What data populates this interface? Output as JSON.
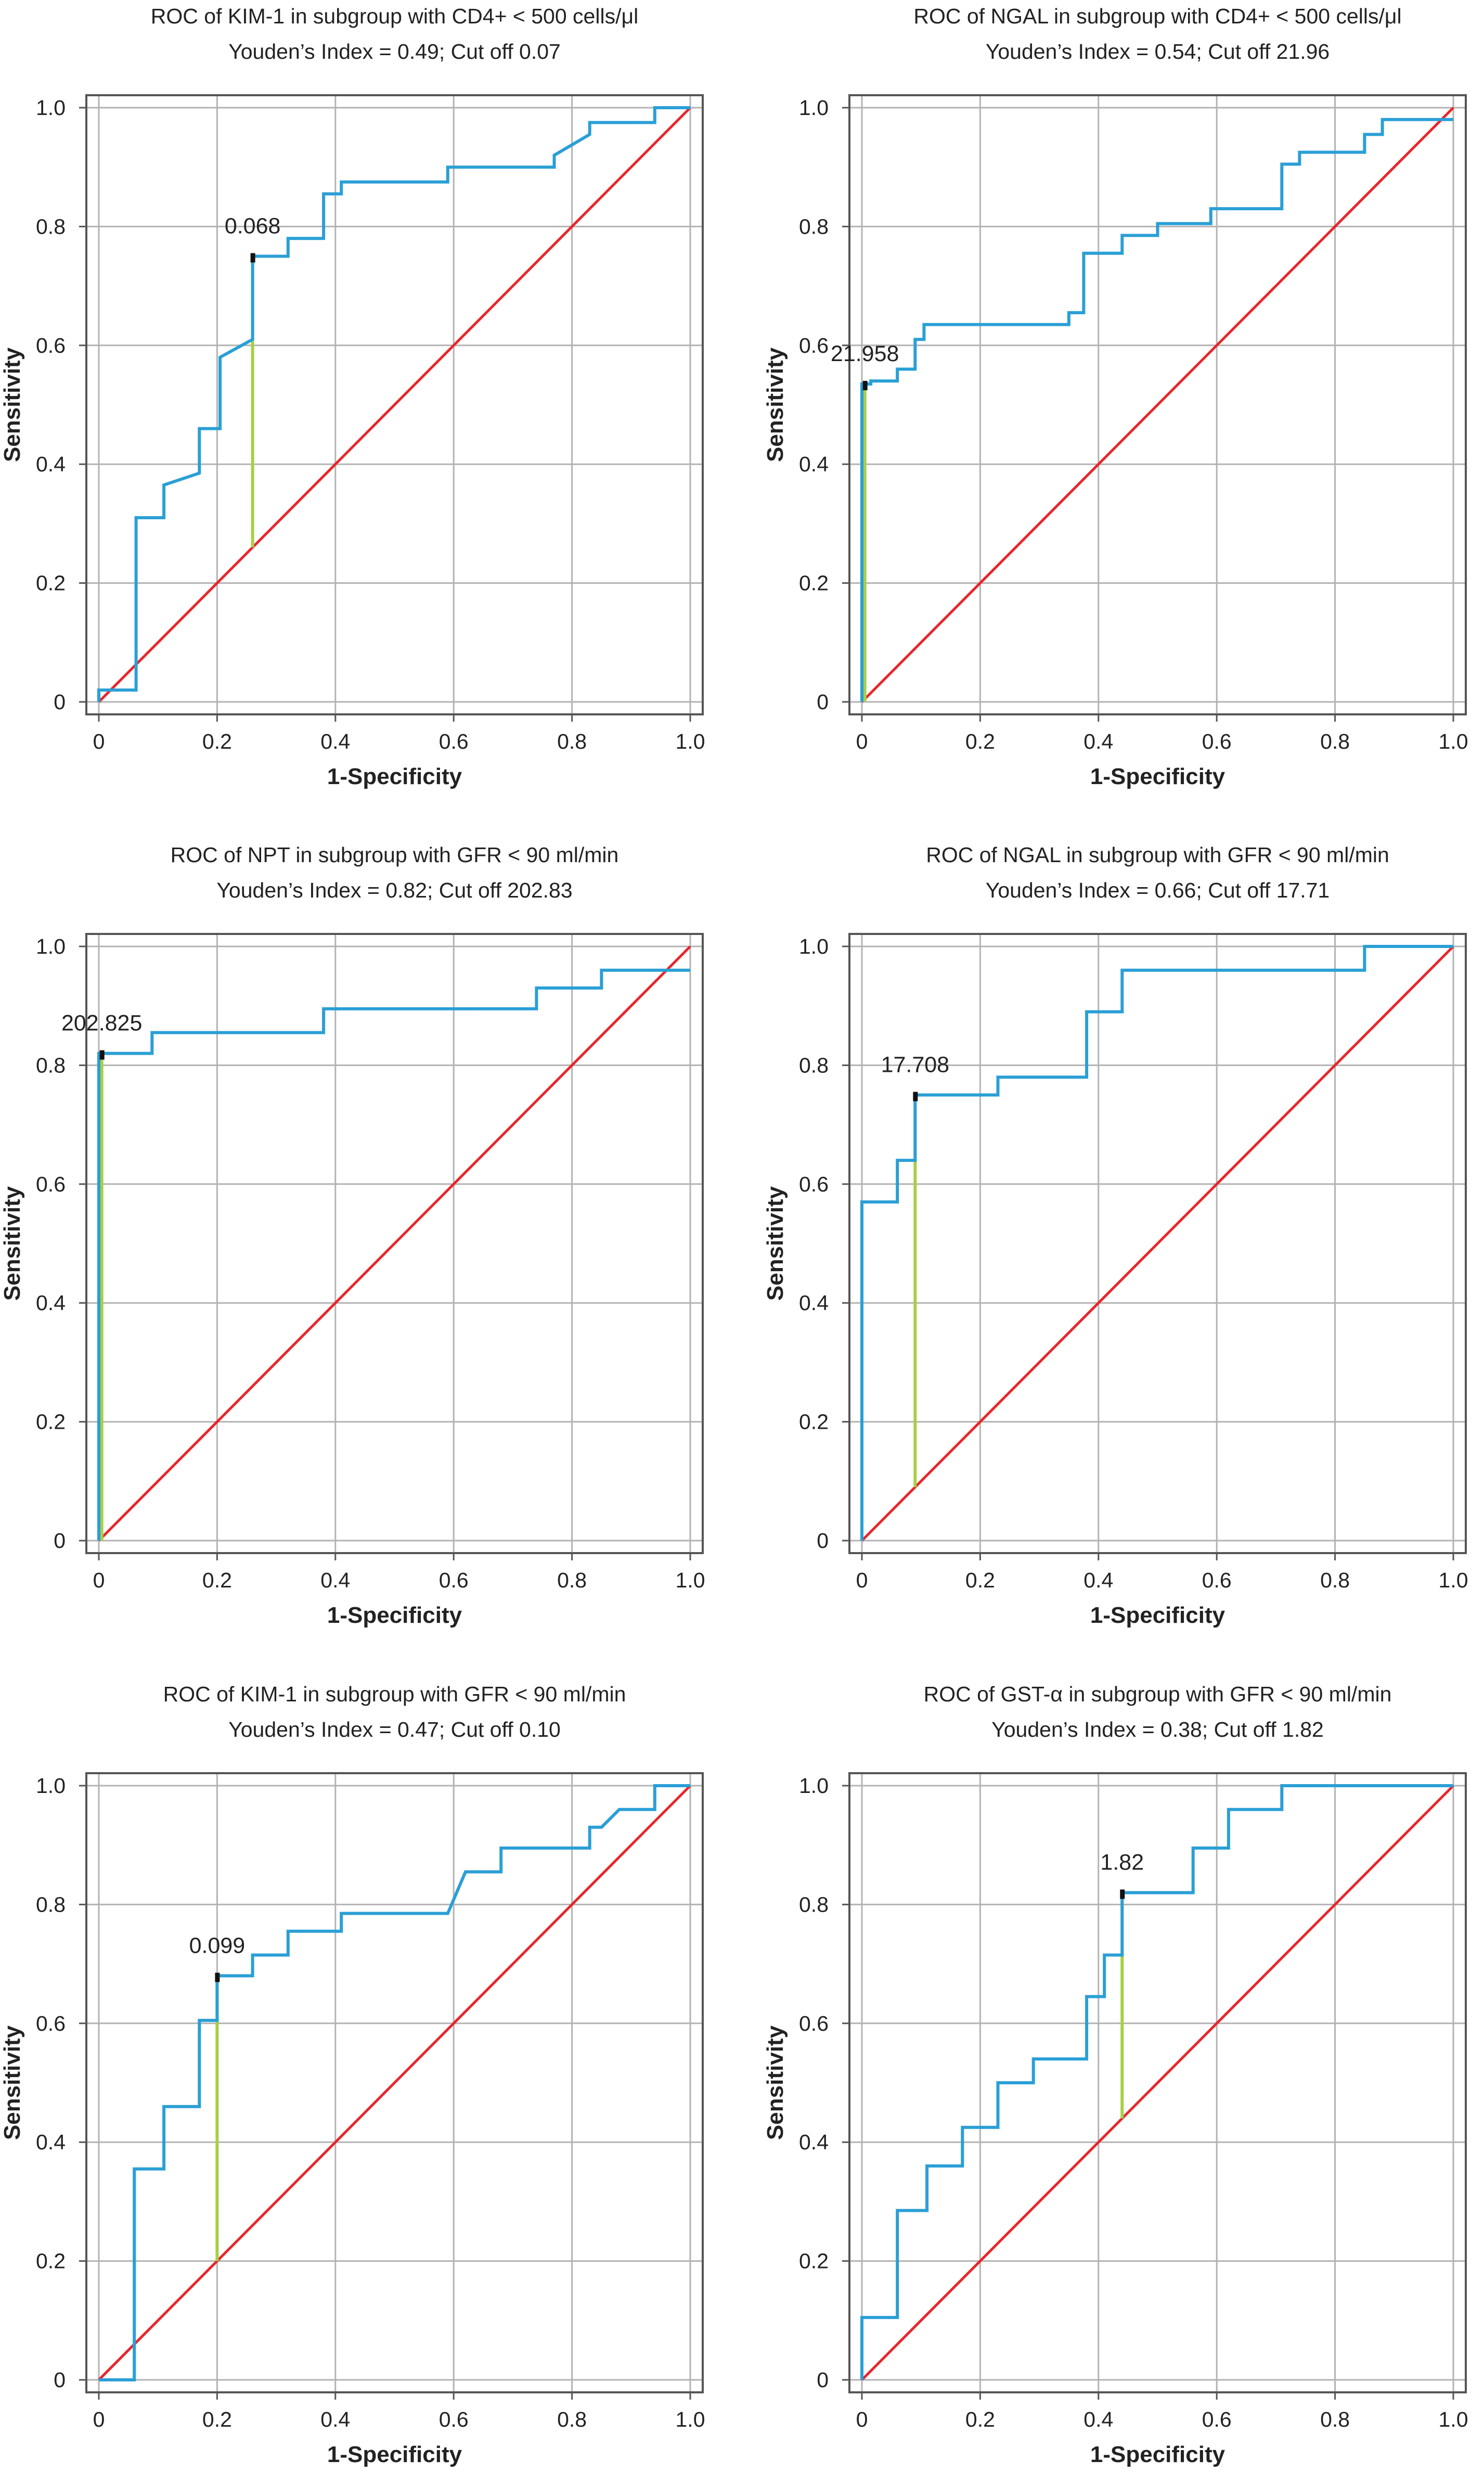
{
  "chart_data": [
    {
      "type": "line",
      "title": "ROC of KIM-1 in subgroup with CD4+ < 500 cells/μl",
      "subtitle": "Youden’s Index = 0.49; Cut off 0.07",
      "xlabel": "1-Specificity",
      "ylabel": "Sensitivity",
      "xlim": [
        0,
        1
      ],
      "ylim": [
        0,
        1
      ],
      "xticks": [
        "0",
        "0.2",
        "0.4",
        "0.6",
        "0.8",
        "1.0"
      ],
      "yticks": [
        "0",
        "0.2",
        "0.4",
        "0.6",
        "0.8",
        "1.0"
      ],
      "grid": true,
      "roc": [
        [
          0,
          0
        ],
        [
          0,
          0.02
        ],
        [
          0.063,
          0.02
        ],
        [
          0.063,
          0.31
        ],
        [
          0.11,
          0.31
        ],
        [
          0.11,
          0.365
        ],
        [
          0.17,
          0.385
        ],
        [
          0.17,
          0.46
        ],
        [
          0.205,
          0.46
        ],
        [
          0.205,
          0.58
        ],
        [
          0.26,
          0.61
        ],
        [
          0.26,
          0.75
        ],
        [
          0.32,
          0.75
        ],
        [
          0.32,
          0.78
        ],
        [
          0.38,
          0.78
        ],
        [
          0.38,
          0.855
        ],
        [
          0.41,
          0.855
        ],
        [
          0.41,
          0.875
        ],
        [
          0.59,
          0.875
        ],
        [
          0.59,
          0.9
        ],
        [
          0.77,
          0.9
        ],
        [
          0.77,
          0.92
        ],
        [
          0.83,
          0.955
        ],
        [
          0.83,
          0.975
        ],
        [
          0.94,
          0.975
        ],
        [
          0.94,
          1.0
        ],
        [
          1.0,
          1.0
        ]
      ],
      "cutoff": {
        "label": "0.068",
        "x": 0.26,
        "y_roc": 0.75,
        "y_diag": 0.26
      }
    },
    {
      "type": "line",
      "title": "ROC of NGAL in subgroup with CD4+ < 500 cells/μl",
      "subtitle": "Youden’s Index = 0.54; Cut off 21.96",
      "xlabel": "1-Specificity",
      "ylabel": "Sensitivity",
      "xlim": [
        0,
        1
      ],
      "ylim": [
        0,
        1
      ],
      "xticks": [
        "0",
        "0.2",
        "0.4",
        "0.6",
        "0.8",
        "1.0"
      ],
      "yticks": [
        "0",
        "0.2",
        "0.4",
        "0.6",
        "0.8",
        "1.0"
      ],
      "grid": true,
      "roc": [
        [
          0,
          0
        ],
        [
          0,
          0.535
        ],
        [
          0.015,
          0.535
        ],
        [
          0.015,
          0.54
        ],
        [
          0.06,
          0.54
        ],
        [
          0.06,
          0.56
        ],
        [
          0.09,
          0.56
        ],
        [
          0.09,
          0.61
        ],
        [
          0.105,
          0.61
        ],
        [
          0.105,
          0.635
        ],
        [
          0.35,
          0.635
        ],
        [
          0.35,
          0.655
        ],
        [
          0.375,
          0.655
        ],
        [
          0.375,
          0.755
        ],
        [
          0.44,
          0.755
        ],
        [
          0.44,
          0.785
        ],
        [
          0.5,
          0.785
        ],
        [
          0.5,
          0.805
        ],
        [
          0.59,
          0.805
        ],
        [
          0.59,
          0.83
        ],
        [
          0.71,
          0.83
        ],
        [
          0.71,
          0.905
        ],
        [
          0.74,
          0.905
        ],
        [
          0.74,
          0.925
        ],
        [
          0.85,
          0.925
        ],
        [
          0.85,
          0.955
        ],
        [
          0.88,
          0.955
        ],
        [
          0.88,
          0.98
        ],
        [
          1.0,
          0.98
        ]
      ],
      "cutoff": {
        "label": "21.958",
        "x": 0.005,
        "y_roc": 0.535,
        "y_diag": 0.0
      }
    },
    {
      "type": "line",
      "title": "ROC of NPT in subgroup with GFR < 90 ml/min",
      "subtitle": "Youden’s Index = 0.82; Cut off 202.83",
      "xlabel": "1-Specificity",
      "ylabel": "Sensitivity",
      "xlim": [
        0,
        1
      ],
      "ylim": [
        0,
        1
      ],
      "xticks": [
        "0",
        "0.2",
        "0.4",
        "0.6",
        "0.8",
        "1.0"
      ],
      "yticks": [
        "0",
        "0.2",
        "0.4",
        "0.6",
        "0.8",
        "1.0"
      ],
      "grid": true,
      "roc": [
        [
          0,
          0
        ],
        [
          0,
          0.82
        ],
        [
          0.09,
          0.82
        ],
        [
          0.09,
          0.855
        ],
        [
          0.38,
          0.855
        ],
        [
          0.38,
          0.895
        ],
        [
          0.74,
          0.895
        ],
        [
          0.74,
          0.93
        ],
        [
          0.85,
          0.93
        ],
        [
          0.85,
          0.96
        ],
        [
          1.0,
          0.96
        ]
      ],
      "cutoff": {
        "label": "202.825",
        "x": 0.005,
        "y_roc": 0.82,
        "y_diag": 0.0
      }
    },
    {
      "type": "line",
      "title": "ROC of NGAL in subgroup with GFR < 90 ml/min",
      "subtitle": "Youden’s Index = 0.66; Cut off 17.71",
      "xlabel": "1-Specificity",
      "ylabel": "Sensitivity",
      "xlim": [
        0,
        1
      ],
      "ylim": [
        0,
        1
      ],
      "xticks": [
        "0",
        "0.2",
        "0.4",
        "0.6",
        "0.8",
        "1.0"
      ],
      "yticks": [
        "0",
        "0.2",
        "0.4",
        "0.6",
        "0.8",
        "1.0"
      ],
      "grid": true,
      "roc": [
        [
          0,
          0
        ],
        [
          0,
          0.57
        ],
        [
          0.06,
          0.57
        ],
        [
          0.06,
          0.64
        ],
        [
          0.09,
          0.64
        ],
        [
          0.09,
          0.75
        ],
        [
          0.23,
          0.75
        ],
        [
          0.23,
          0.78
        ],
        [
          0.38,
          0.78
        ],
        [
          0.38,
          0.89
        ],
        [
          0.44,
          0.89
        ],
        [
          0.44,
          0.96
        ],
        [
          0.85,
          0.96
        ],
        [
          0.85,
          1.0
        ],
        [
          1.0,
          1.0
        ]
      ],
      "cutoff": {
        "label": "17.708",
        "x": 0.09,
        "y_roc": 0.75,
        "y_diag": 0.09
      }
    },
    {
      "type": "line",
      "title": "ROC of KIM-1 in subgroup with GFR < 90 ml/min",
      "subtitle": "Youden’s Index = 0.47; Cut off 0.10",
      "xlabel": "1-Specificity",
      "ylabel": "Sensitivity",
      "xlim": [
        0,
        1
      ],
      "ylim": [
        0,
        1
      ],
      "xticks": [
        "0",
        "0.2",
        "0.4",
        "0.6",
        "0.8",
        "1.0"
      ],
      "yticks": [
        "0",
        "0.2",
        "0.4",
        "0.6",
        "0.8",
        "1.0"
      ],
      "grid": true,
      "roc": [
        [
          0,
          0
        ],
        [
          0.06,
          0
        ],
        [
          0.06,
          0.355
        ],
        [
          0.11,
          0.355
        ],
        [
          0.11,
          0.46
        ],
        [
          0.17,
          0.46
        ],
        [
          0.17,
          0.605
        ],
        [
          0.2,
          0.605
        ],
        [
          0.2,
          0.68
        ],
        [
          0.26,
          0.68
        ],
        [
          0.26,
          0.715
        ],
        [
          0.32,
          0.715
        ],
        [
          0.32,
          0.755
        ],
        [
          0.41,
          0.755
        ],
        [
          0.41,
          0.785
        ],
        [
          0.59,
          0.785
        ],
        [
          0.62,
          0.855
        ],
        [
          0.68,
          0.855
        ],
        [
          0.68,
          0.895
        ],
        [
          0.83,
          0.895
        ],
        [
          0.83,
          0.93
        ],
        [
          0.85,
          0.93
        ],
        [
          0.88,
          0.96
        ],
        [
          0.94,
          0.96
        ],
        [
          0.94,
          1.0
        ],
        [
          1.0,
          1.0
        ]
      ],
      "cutoff": {
        "label": "0.099",
        "x": 0.2,
        "y_roc": 0.68,
        "y_diag": 0.2
      }
    },
    {
      "type": "line",
      "title": "ROC of GST-α in subgroup with GFR < 90 ml/min",
      "subtitle": "Youden’s Index = 0.38; Cut off 1.82",
      "xlabel": "1-Specificity",
      "ylabel": "Sensitivity",
      "xlim": [
        0,
        1
      ],
      "ylim": [
        0,
        1
      ],
      "xticks": [
        "0",
        "0.2",
        "0.4",
        "0.6",
        "0.8",
        "1.0"
      ],
      "yticks": [
        "0",
        "0.2",
        "0.4",
        "0.6",
        "0.8",
        "1.0"
      ],
      "grid": true,
      "roc": [
        [
          0,
          0
        ],
        [
          0,
          0.105
        ],
        [
          0.06,
          0.105
        ],
        [
          0.06,
          0.285
        ],
        [
          0.11,
          0.285
        ],
        [
          0.11,
          0.36
        ],
        [
          0.17,
          0.36
        ],
        [
          0.17,
          0.425
        ],
        [
          0.23,
          0.425
        ],
        [
          0.23,
          0.5
        ],
        [
          0.29,
          0.5
        ],
        [
          0.29,
          0.54
        ],
        [
          0.38,
          0.54
        ],
        [
          0.38,
          0.645
        ],
        [
          0.41,
          0.645
        ],
        [
          0.41,
          0.715
        ],
        [
          0.44,
          0.715
        ],
        [
          0.44,
          0.82
        ],
        [
          0.56,
          0.82
        ],
        [
          0.56,
          0.895
        ],
        [
          0.62,
          0.895
        ],
        [
          0.62,
          0.96
        ],
        [
          0.71,
          0.96
        ],
        [
          0.71,
          1.0
        ],
        [
          1.0,
          1.0
        ]
      ],
      "cutoff": {
        "label": "1.82",
        "x": 0.44,
        "y_roc": 0.82,
        "y_diag": 0.44
      }
    }
  ],
  "colors": {
    "roc_curve": "#2a9fd6",
    "reference_line": "#e8262b",
    "cutoff_line": "#a8cf45",
    "grid": "#b3b3b3",
    "frame": "#555555",
    "text": "#222222"
  }
}
